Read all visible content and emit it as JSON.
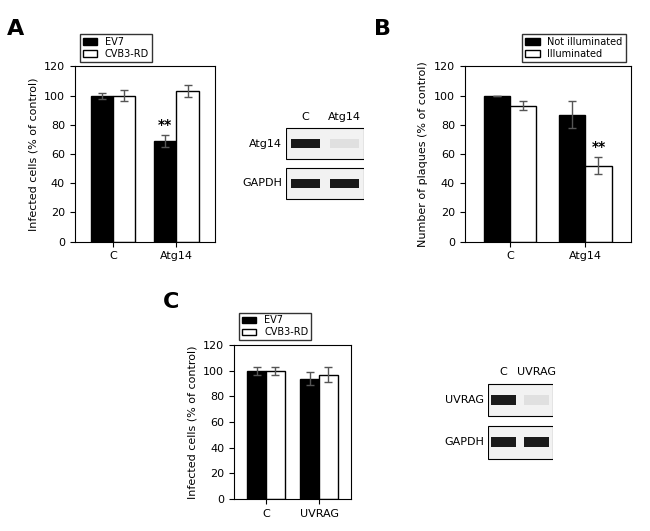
{
  "chart_data": [
    {
      "type": "bar",
      "panel": "A",
      "ylabel": "Infected cells (% of control)",
      "categories": [
        "C",
        "Atg14"
      ],
      "series": [
        {
          "name": "EV7",
          "color": "#000000",
          "values": [
            100,
            69
          ],
          "errors": [
            2,
            4
          ]
        },
        {
          "name": "CVB3-RD",
          "color": "#ffffff",
          "values": [
            100,
            103
          ],
          "errors": [
            4,
            4
          ]
        }
      ],
      "annotations": [
        {
          "text": "**",
          "category": "Atg14",
          "series": "EV7"
        }
      ],
      "ylim": [
        0,
        120
      ],
      "yticks": [
        0,
        20,
        40,
        60,
        80,
        100,
        120
      ],
      "legend": "upper left"
    },
    {
      "type": "bar",
      "panel": "B",
      "ylabel": "Number of plaques (% of control)",
      "categories": [
        "C",
        "Atg14"
      ],
      "series": [
        {
          "name": "Not illuminated",
          "color": "#000000",
          "values": [
            100,
            87
          ],
          "errors": [
            0,
            9
          ]
        },
        {
          "name": "Illuminated",
          "color": "#ffffff",
          "values": [
            93,
            52
          ],
          "errors": [
            3,
            6
          ]
        }
      ],
      "annotations": [
        {
          "text": "**",
          "category": "Atg14",
          "series": "Illuminated"
        }
      ],
      "ylim": [
        0,
        120
      ],
      "yticks": [
        0,
        20,
        40,
        60,
        80,
        100,
        120
      ],
      "legend": "upper right"
    },
    {
      "type": "bar",
      "panel": "C",
      "ylabel": "Infected cells (% of control)",
      "categories": [
        "C",
        "UVRAG"
      ],
      "series": [
        {
          "name": "EV7",
          "color": "#000000",
          "values": [
            100,
            94
          ],
          "errors": [
            3,
            5
          ]
        },
        {
          "name": "CVB3-RD",
          "color": "#ffffff",
          "values": [
            100,
            97
          ],
          "errors": [
            3,
            6
          ]
        }
      ],
      "annotations": [],
      "ylim": [
        0,
        120
      ],
      "yticks": [
        0,
        20,
        40,
        60,
        80,
        100,
        120
      ],
      "legend": "upper left"
    }
  ],
  "western_blots": [
    {
      "lanes": [
        "C",
        "Atg14"
      ],
      "rows": [
        "Atg14",
        "GAPDH"
      ]
    },
    {
      "lanes": [
        "C",
        "UVRAG"
      ],
      "rows": [
        "UVRAG",
        "GAPDH"
      ]
    }
  ]
}
